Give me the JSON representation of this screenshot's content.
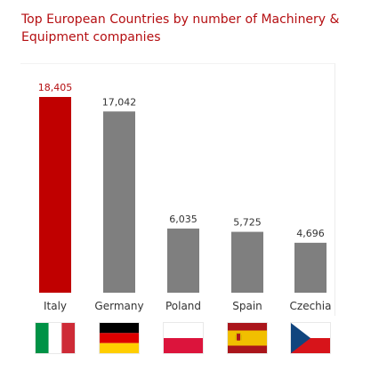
{
  "chart_data": {
    "type": "bar",
    "title": "Top European Countries by number of Machinery & Equipment companies",
    "categories": [
      "Italy",
      "Germany",
      "Poland",
      "Spain",
      "Czechia"
    ],
    "values": [
      18405,
      17042,
      6035,
      5725,
      4696
    ],
    "value_labels": [
      "18,405",
      "17,042",
      "6,035",
      "5,725",
      "4,696"
    ],
    "xlabel": "",
    "ylabel": "",
    "ylim": [
      0,
      18405
    ],
    "grid": false,
    "legend": "none",
    "colors": {
      "highlight": "#c00000",
      "default": "#7f7f7f"
    },
    "highlight_index": 0
  },
  "flags": [
    {
      "country": "Italy",
      "icon": "flag-italy-icon",
      "colors": [
        "#009246",
        "#ffffff",
        "#ce2b37"
      ]
    },
    {
      "country": "Germany",
      "icon": "flag-germany-icon",
      "colors": [
        "#000000",
        "#dd0000",
        "#ffce00"
      ]
    },
    {
      "country": "Poland",
      "icon": "flag-poland-icon",
      "colors": [
        "#ffffff",
        "#dc143c"
      ]
    },
    {
      "country": "Spain",
      "icon": "flag-spain-icon",
      "colors": [
        "#aa151b",
        "#f1bf00",
        "#aa151b"
      ]
    },
    {
      "country": "Czechia",
      "icon": "flag-czechia-icon",
      "colors": [
        "#ffffff",
        "#d7141a",
        "#11457e"
      ]
    }
  ]
}
